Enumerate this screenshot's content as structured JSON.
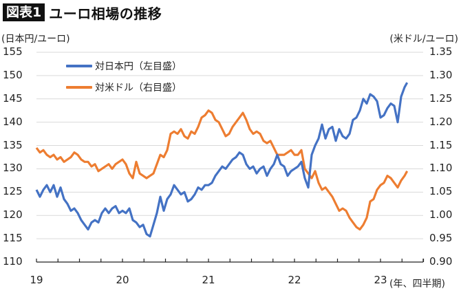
{
  "header": {
    "badge": "図表1",
    "title": "ユーロ相場の推移"
  },
  "axes": {
    "left_unit": "(日本円/ユーロ)",
    "right_unit": "(米ドル/ユーロ)",
    "x_unit": "(年、四半期)",
    "left_ticks": [
      "155",
      "150",
      "145",
      "140",
      "135",
      "130",
      "125",
      "120",
      "115",
      "110"
    ],
    "right_ticks": [
      "1.35",
      "1.30",
      "1.25",
      "1.20",
      "1.15",
      "1.10",
      "1.05",
      "1.00",
      "0.95",
      "0.90"
    ],
    "x_ticks": [
      "19",
      "20",
      "21",
      "22",
      "23"
    ]
  },
  "legend": {
    "items": [
      {
        "label": "対日本円（左目盛）",
        "color": "#4472C4"
      },
      {
        "label": "対米ドル（右目盛）",
        "color": "#ED7D31"
      }
    ]
  },
  "colors": {
    "jpy": "#4472C4",
    "usd": "#ED7D31",
    "grid": "#d9d9d9",
    "axis": "#222222"
  },
  "chart_data": {
    "type": "line",
    "title": "ユーロ相場の推移",
    "xlabel": "(年、四半期)",
    "ylabel": "(日本円/ユーロ)",
    "ylabel_right": "(米ドル/ユーロ)",
    "ylim": [
      110,
      155
    ],
    "ylim_right": [
      0.9,
      1.35
    ],
    "xlim": [
      2019.0,
      2023.6
    ],
    "x_tick_labels": [
      "19",
      "20",
      "21",
      "22",
      "23"
    ],
    "grid": true,
    "legend_position": "upper-left",
    "series": [
      {
        "name": "対日本円（左目盛）",
        "axis": "left",
        "color": "#4472C4",
        "x": [
          2019.0,
          2019.04,
          2019.08,
          2019.12,
          2019.16,
          2019.2,
          2019.24,
          2019.28,
          2019.32,
          2019.36,
          2019.4,
          2019.44,
          2019.48,
          2019.52,
          2019.56,
          2019.6,
          2019.64,
          2019.68,
          2019.72,
          2019.76,
          2019.8,
          2019.84,
          2019.88,
          2019.92,
          2019.96,
          2020.0,
          2020.04,
          2020.08,
          2020.12,
          2020.16,
          2020.2,
          2020.24,
          2020.28,
          2020.32,
          2020.36,
          2020.4,
          2020.44,
          2020.48,
          2020.52,
          2020.56,
          2020.6,
          2020.64,
          2020.68,
          2020.72,
          2020.76,
          2020.8,
          2020.84,
          2020.88,
          2020.92,
          2020.96,
          2021.0,
          2021.04,
          2021.08,
          2021.12,
          2021.16,
          2021.2,
          2021.24,
          2021.28,
          2021.32,
          2021.36,
          2021.4,
          2021.44,
          2021.48,
          2021.52,
          2021.56,
          2021.6,
          2021.64,
          2021.68,
          2021.72,
          2021.76,
          2021.8,
          2021.84,
          2021.88,
          2021.92,
          2021.96,
          2022.0,
          2022.04,
          2022.08,
          2022.12,
          2022.16,
          2022.2,
          2022.24,
          2022.28,
          2022.32,
          2022.36,
          2022.4,
          2022.44,
          2022.48,
          2022.52,
          2022.56,
          2022.6,
          2022.64,
          2022.68,
          2022.72,
          2022.76,
          2022.8,
          2022.84,
          2022.88,
          2022.92,
          2022.96,
          2023.0,
          2023.04,
          2023.08,
          2023.12,
          2023.16,
          2023.2,
          2023.24,
          2023.28,
          2023.31
        ],
        "values": [
          125.5,
          124.0,
          125.5,
          126.5,
          125.0,
          126.5,
          124.0,
          126.0,
          123.5,
          122.5,
          121.0,
          121.5,
          120.5,
          119.0,
          118.0,
          117.0,
          118.5,
          119.0,
          118.5,
          120.5,
          121.5,
          120.5,
          121.5,
          122.0,
          120.5,
          121.0,
          120.5,
          121.5,
          119.0,
          118.5,
          117.5,
          118.0,
          116.0,
          115.5,
          118.0,
          120.5,
          124.0,
          121.0,
          123.5,
          124.5,
          126.5,
          125.5,
          124.5,
          125.0,
          123.0,
          123.5,
          124.5,
          126.0,
          125.5,
          126.5,
          126.5,
          127.0,
          128.5,
          129.5,
          130.5,
          130.0,
          131.0,
          132.0,
          132.5,
          133.5,
          133.0,
          131.0,
          130.0,
          130.5,
          129.0,
          130.0,
          130.5,
          128.5,
          130.0,
          131.0,
          133.0,
          131.0,
          130.5,
          128.5,
          129.5,
          130.0,
          130.5,
          131.5,
          128.0,
          126.0,
          133.0,
          135.0,
          136.5,
          139.5,
          136.5,
          138.5,
          139.0,
          136.0,
          138.5,
          137.0,
          136.5,
          137.5,
          140.5,
          141.0,
          142.5,
          145.0,
          144.0,
          146.0,
          145.5,
          144.5,
          141.0,
          141.5,
          143.0,
          144.0,
          143.5,
          140.0,
          145.5,
          147.5,
          148.5
        ]
      },
      {
        "name": "対米ドル（右目盛）",
        "axis": "right",
        "color": "#ED7D31",
        "x": [
          2019.0,
          2019.04,
          2019.08,
          2019.12,
          2019.16,
          2019.2,
          2019.24,
          2019.28,
          2019.32,
          2019.36,
          2019.4,
          2019.44,
          2019.48,
          2019.52,
          2019.56,
          2019.6,
          2019.64,
          2019.68,
          2019.72,
          2019.76,
          2019.8,
          2019.84,
          2019.88,
          2019.92,
          2019.96,
          2020.0,
          2020.04,
          2020.08,
          2020.12,
          2020.16,
          2020.2,
          2020.24,
          2020.28,
          2020.32,
          2020.36,
          2020.4,
          2020.44,
          2020.48,
          2020.52,
          2020.56,
          2020.6,
          2020.64,
          2020.68,
          2020.72,
          2020.76,
          2020.8,
          2020.84,
          2020.88,
          2020.92,
          2020.96,
          2021.0,
          2021.04,
          2021.08,
          2021.12,
          2021.16,
          2021.2,
          2021.24,
          2021.28,
          2021.32,
          2021.36,
          2021.4,
          2021.44,
          2021.48,
          2021.52,
          2021.56,
          2021.6,
          2021.64,
          2021.68,
          2021.72,
          2021.76,
          2021.8,
          2021.84,
          2021.88,
          2021.92,
          2021.96,
          2022.0,
          2022.04,
          2022.08,
          2022.12,
          2022.16,
          2022.2,
          2022.24,
          2022.28,
          2022.32,
          2022.36,
          2022.4,
          2022.44,
          2022.48,
          2022.52,
          2022.56,
          2022.6,
          2022.64,
          2022.68,
          2022.72,
          2022.76,
          2022.8,
          2022.84,
          2022.88,
          2022.92,
          2022.96,
          2023.0,
          2023.04,
          2023.08,
          2023.12,
          2023.16,
          2023.2,
          2023.24,
          2023.28,
          2023.31
        ],
        "values": [
          1.145,
          1.135,
          1.14,
          1.13,
          1.125,
          1.13,
          1.12,
          1.125,
          1.115,
          1.12,
          1.125,
          1.135,
          1.13,
          1.12,
          1.115,
          1.115,
          1.105,
          1.11,
          1.095,
          1.1,
          1.105,
          1.11,
          1.1,
          1.11,
          1.115,
          1.12,
          1.11,
          1.09,
          1.08,
          1.115,
          1.09,
          1.085,
          1.08,
          1.085,
          1.09,
          1.11,
          1.13,
          1.125,
          1.14,
          1.175,
          1.18,
          1.175,
          1.185,
          1.17,
          1.165,
          1.18,
          1.175,
          1.19,
          1.21,
          1.215,
          1.225,
          1.22,
          1.205,
          1.2,
          1.185,
          1.17,
          1.175,
          1.19,
          1.2,
          1.21,
          1.22,
          1.205,
          1.185,
          1.175,
          1.18,
          1.175,
          1.16,
          1.155,
          1.16,
          1.145,
          1.13,
          1.13,
          1.13,
          1.135,
          1.14,
          1.13,
          1.13,
          1.14,
          1.1,
          1.09,
          1.08,
          1.095,
          1.07,
          1.055,
          1.06,
          1.05,
          1.04,
          1.025,
          1.01,
          1.015,
          1.01,
          0.995,
          0.985,
          0.975,
          0.97,
          0.98,
          0.995,
          1.03,
          1.035,
          1.055,
          1.065,
          1.07,
          1.085,
          1.08,
          1.07,
          1.06,
          1.075,
          1.085,
          1.095
        ]
      }
    ]
  }
}
